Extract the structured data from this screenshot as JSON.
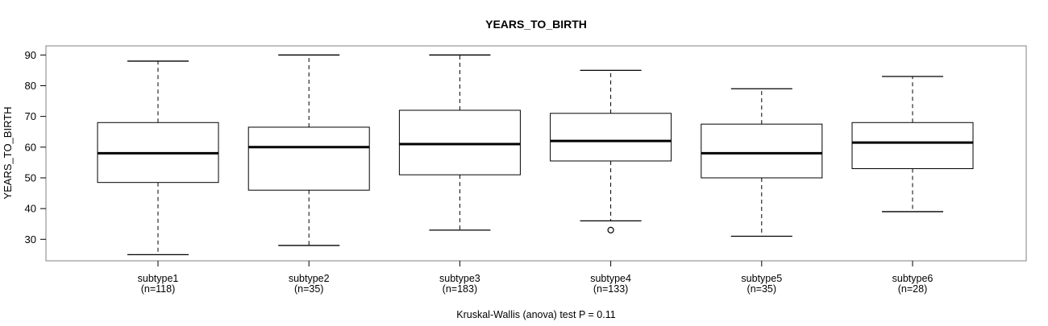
{
  "chart_data": {
    "type": "boxplot",
    "title": "YEARS_TO_BIRTH",
    "ylabel": "YEARS_TO_BIRTH",
    "annotation": "Kruskal-Wallis (anova) test P = 0.11",
    "y_ticks": [
      30,
      40,
      50,
      60,
      70,
      80,
      90
    ],
    "ylim_shown": [
      23,
      93
    ],
    "grid": false,
    "legend": "none",
    "groups": [
      {
        "label": "subtype1",
        "n_label": "(n=118)",
        "n": 118,
        "whisker_low": 25,
        "q1": 48.5,
        "median": 58,
        "q3": 68,
        "whisker_high": 88,
        "outliers": []
      },
      {
        "label": "subtype2",
        "n_label": "(n=35)",
        "n": 35,
        "whisker_low": 28,
        "q1": 46,
        "median": 60,
        "q3": 66.5,
        "whisker_high": 90,
        "outliers": []
      },
      {
        "label": "subtype3",
        "n_label": "(n=183)",
        "n": 183,
        "whisker_low": 33,
        "q1": 51,
        "median": 61,
        "q3": 72,
        "whisker_high": 90,
        "outliers": []
      },
      {
        "label": "subtype4",
        "n_label": "(n=133)",
        "n": 133,
        "whisker_low": 36,
        "q1": 55.5,
        "median": 62,
        "q3": 71,
        "whisker_high": 85,
        "outliers": [
          33
        ]
      },
      {
        "label": "subtype5",
        "n_label": "(n=35)",
        "n": 35,
        "whisker_low": 31,
        "q1": 50,
        "median": 58,
        "q3": 67.5,
        "whisker_high": 79,
        "outliers": []
      },
      {
        "label": "subtype6",
        "n_label": "(n=28)",
        "n": 28,
        "whisker_low": 39,
        "q1": 53,
        "median": 61.5,
        "q3": 68,
        "whisker_high": 83,
        "outliers": []
      }
    ],
    "colors": {
      "frame": "#808080",
      "box_stroke": "#000000",
      "median": "#000000",
      "whisker": "#000000",
      "tick": "#000000",
      "text": "#000000",
      "background": "#ffffff"
    }
  }
}
